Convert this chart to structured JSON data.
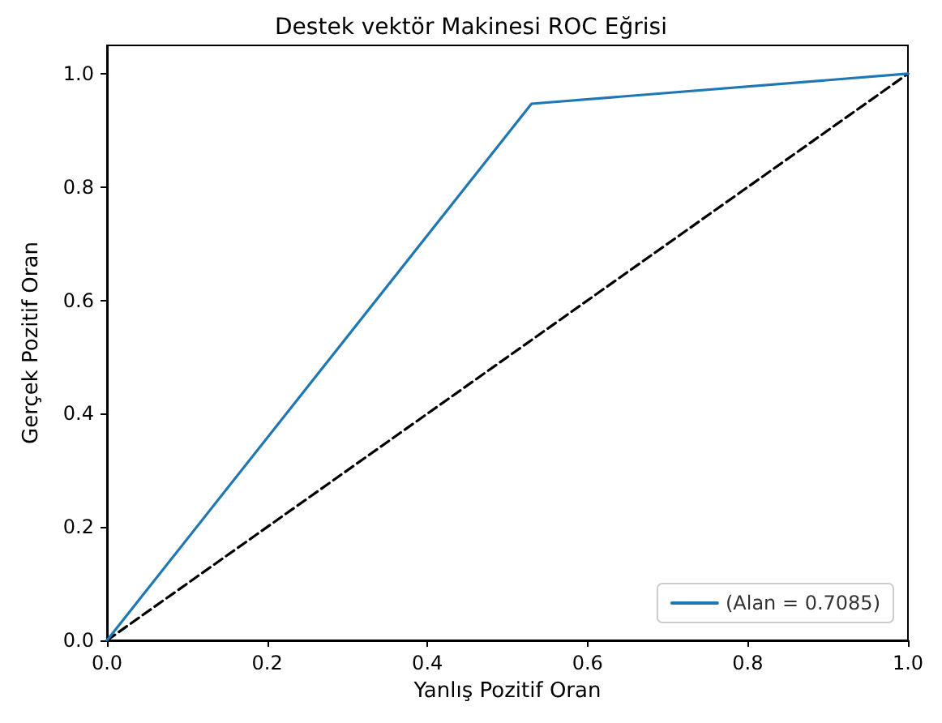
{
  "chart_data": {
    "type": "line",
    "title": "Destek vektör Makinesi ROC Eğrisi",
    "xlabel": "Yanlış Pozitif Oran",
    "ylabel": "Gerçek Pozitif Oran",
    "series": [
      {
        "name": "(Alan = 0.7085)",
        "color": "#1f77b4",
        "x": [
          0,
          0.53,
          1
        ],
        "values": [
          0,
          0.947,
          1
        ]
      },
      {
        "color": "#000000",
        "x": [
          0,
          1
        ],
        "values": [
          0,
          1
        ],
        "line_style": "dashed"
      }
    ],
    "xlim": [
      0,
      1
    ],
    "ylim": [
      0,
      1.05
    ],
    "xticks": [
      {
        "value": 0,
        "label": "0.0"
      },
      {
        "value": 0.2,
        "label": "0.2"
      },
      {
        "value": 0.4,
        "label": "0.4"
      },
      {
        "value": 0.6,
        "label": "0.6"
      },
      {
        "value": 0.8,
        "label": "0.8"
      },
      {
        "value": 1,
        "label": "1.0"
      }
    ],
    "yticks": [
      {
        "value": 0,
        "label": "0.0"
      },
      {
        "value": 0.2,
        "label": "0.2"
      },
      {
        "value": 0.4,
        "label": "0.4"
      },
      {
        "value": 0.6,
        "label": "0.6"
      },
      {
        "value": 0.8,
        "label": "0.8"
      },
      {
        "value": 1,
        "label": "1.0"
      }
    ],
    "grid": false,
    "legend": "bottom right",
    "marker": "none",
    "line_style": "solid"
  }
}
